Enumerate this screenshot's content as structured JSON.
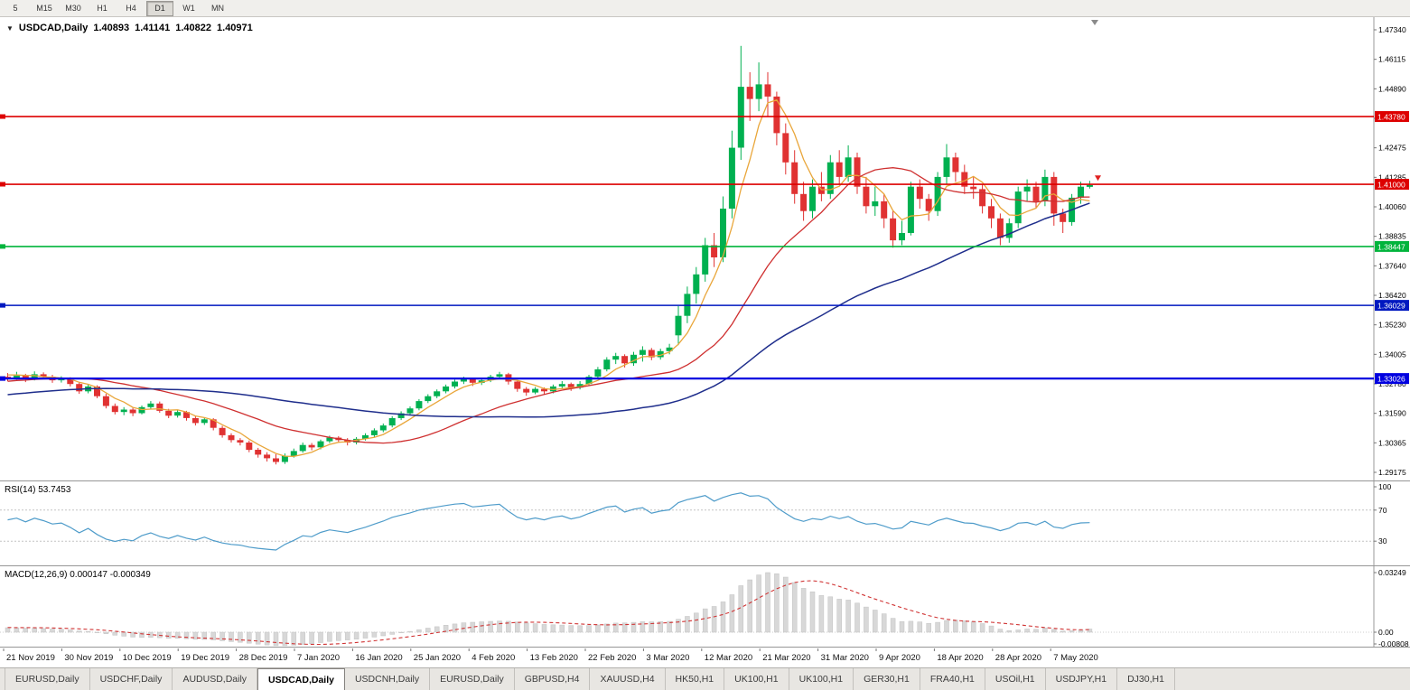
{
  "toolbar": {
    "timeframes": [
      "5",
      "M15",
      "M30",
      "H1",
      "H4",
      "D1",
      "W1",
      "MN"
    ],
    "active": "D1"
  },
  "icons": {
    "symbol_dropdown": "▼"
  },
  "header": {
    "symbol": "USDCAD,Daily",
    "open": "1.40893",
    "high": "1.41141",
    "low": "1.40822",
    "close": "1.40971"
  },
  "rsi_pane": {
    "label": "RSI(14) 53.7453",
    "axis_ticks": [
      "100",
      "70",
      "30"
    ]
  },
  "macd_pane": {
    "label": "MACD(12,26,9) 0.000147 -0.000349",
    "axis_ticks": [
      "0.03249",
      "0.00",
      "-0.00808"
    ]
  },
  "chart_data": {
    "type": "candlestick",
    "title": "USDCAD,Daily",
    "y_axis": {
      "top": 1.4734,
      "bottom": 1.29175,
      "tick_labels": [
        "1.47340",
        "1.46115",
        "1.44890",
        "1.43665",
        "1.42475",
        "1.41285",
        "1.40060",
        "1.38835",
        "1.37640",
        "1.36420",
        "1.35230",
        "1.34005",
        "1.32780",
        "1.31590",
        "1.30365",
        "1.29175"
      ]
    },
    "x_labels": [
      "21 Nov 2019",
      "30 Nov 2019",
      "10 Dec 2019",
      "19 Dec 2019",
      "28 Dec 2019",
      "7 Jan 2020",
      "16 Jan 2020",
      "25 Jan 2020",
      "4 Feb 2020",
      "13 Feb 2020",
      "22 Feb 2020",
      "3 Mar 2020",
      "12 Mar 2020",
      "21 Mar 2020",
      "31 Mar 2020",
      "9 Apr 2020",
      "18 Apr 2020",
      "28 Apr 2020",
      "7 May 2020"
    ],
    "candle_colors": {
      "up": "#00b050",
      "down": "#e03232"
    },
    "candles": [
      [
        1.331,
        1.3325,
        1.3292,
        1.3305
      ],
      [
        1.3305,
        1.333,
        1.3298,
        1.3315
      ],
      [
        1.3315,
        1.3322,
        1.3288,
        1.33
      ],
      [
        1.33,
        1.3332,
        1.3295,
        1.332
      ],
      [
        1.332,
        1.3328,
        1.33,
        1.331
      ],
      [
        1.331,
        1.3318,
        1.3285,
        1.3295
      ],
      [
        1.3295,
        1.3312,
        1.3286,
        1.33
      ],
      [
        1.33,
        1.3308,
        1.327,
        1.328
      ],
      [
        1.328,
        1.3288,
        1.324,
        1.325
      ],
      [
        1.325,
        1.3278,
        1.3242,
        1.327
      ],
      [
        1.327,
        1.3275,
        1.3222,
        1.323
      ],
      [
        1.323,
        1.324,
        1.318,
        1.319
      ],
      [
        1.319,
        1.32,
        1.3155,
        1.3165
      ],
      [
        1.3165,
        1.3185,
        1.3152,
        1.3175
      ],
      [
        1.3175,
        1.3182,
        1.3148,
        1.316
      ],
      [
        1.316,
        1.3192,
        1.3155,
        1.3185
      ],
      [
        1.3185,
        1.321,
        1.3178,
        1.32
      ],
      [
        1.32,
        1.3208,
        1.3162,
        1.317
      ],
      [
        1.317,
        1.3178,
        1.314,
        1.315
      ],
      [
        1.315,
        1.3172,
        1.3142,
        1.3165
      ],
      [
        1.3165,
        1.317,
        1.313,
        1.314
      ],
      [
        1.314,
        1.3148,
        1.311,
        1.312
      ],
      [
        1.312,
        1.3142,
        1.3112,
        1.3135
      ],
      [
        1.3135,
        1.314,
        1.309,
        1.31
      ],
      [
        1.31,
        1.3108,
        1.306,
        1.307
      ],
      [
        1.307,
        1.3078,
        1.304,
        1.305
      ],
      [
        1.305,
        1.3058,
        1.3028,
        1.304
      ],
      [
        1.304,
        1.3048,
        1.3,
        1.301
      ],
      [
        1.301,
        1.3018,
        1.2978,
        1.299
      ],
      [
        1.299,
        1.3,
        1.2962,
        1.2975
      ],
      [
        1.2975,
        1.2992,
        1.295,
        1.296
      ],
      [
        1.296,
        1.2995,
        1.2952,
        1.2985
      ],
      [
        1.2985,
        1.3015,
        1.2978,
        1.3005
      ],
      [
        1.3005,
        1.304,
        1.2998,
        1.303
      ],
      [
        1.303,
        1.3038,
        1.3008,
        1.302
      ],
      [
        1.302,
        1.3052,
        1.3012,
        1.3045
      ],
      [
        1.3045,
        1.3068,
        1.3038,
        1.306
      ],
      [
        1.306,
        1.3066,
        1.304,
        1.305
      ],
      [
        1.305,
        1.3058,
        1.3028,
        1.304
      ],
      [
        1.304,
        1.3062,
        1.3032,
        1.3055
      ],
      [
        1.3055,
        1.3078,
        1.3048,
        1.307
      ],
      [
        1.307,
        1.3098,
        1.3062,
        1.309
      ],
      [
        1.309,
        1.3118,
        1.3082,
        1.311
      ],
      [
        1.311,
        1.3148,
        1.3102,
        1.314
      ],
      [
        1.314,
        1.3168,
        1.3132,
        1.316
      ],
      [
        1.316,
        1.3188,
        1.3152,
        1.318
      ],
      [
        1.318,
        1.3218,
        1.3172,
        1.321
      ],
      [
        1.321,
        1.3238,
        1.3202,
        1.323
      ],
      [
        1.323,
        1.3258,
        1.3222,
        1.325
      ],
      [
        1.325,
        1.3278,
        1.3242,
        1.327
      ],
      [
        1.327,
        1.3298,
        1.3262,
        1.329
      ],
      [
        1.329,
        1.331,
        1.328,
        1.33
      ],
      [
        1.33,
        1.3306,
        1.3272,
        1.3285
      ],
      [
        1.3285,
        1.3304,
        1.3276,
        1.3295
      ],
      [
        1.3295,
        1.3318,
        1.3288,
        1.331
      ],
      [
        1.331,
        1.333,
        1.33,
        1.332
      ],
      [
        1.332,
        1.3326,
        1.3278,
        1.329
      ],
      [
        1.329,
        1.3296,
        1.3248,
        1.326
      ],
      [
        1.326,
        1.3268,
        1.3232,
        1.3245
      ],
      [
        1.3245,
        1.3268,
        1.3238,
        1.326
      ],
      [
        1.326,
        1.3266,
        1.3238,
        1.325
      ],
      [
        1.325,
        1.3278,
        1.3242,
        1.327
      ],
      [
        1.327,
        1.3292,
        1.3262,
        1.328
      ],
      [
        1.328,
        1.3286,
        1.3252,
        1.3265
      ],
      [
        1.3265,
        1.3292,
        1.3258,
        1.328
      ],
      [
        1.328,
        1.3318,
        1.3272,
        1.331
      ],
      [
        1.331,
        1.335,
        1.3302,
        1.334
      ],
      [
        1.334,
        1.339,
        1.3332,
        1.338
      ],
      [
        1.338,
        1.3408,
        1.3362,
        1.3395
      ],
      [
        1.3395,
        1.3402,
        1.3348,
        1.3365
      ],
      [
        1.3365,
        1.3412,
        1.3355,
        1.34
      ],
      [
        1.34,
        1.3435,
        1.3372,
        1.342
      ],
      [
        1.342,
        1.3428,
        1.3378,
        1.339
      ],
      [
        1.339,
        1.3425,
        1.338,
        1.3415
      ],
      [
        1.3415,
        1.3445,
        1.3402,
        1.343
      ],
      [
        1.348,
        1.36,
        1.344,
        1.356
      ],
      [
        1.356,
        1.368,
        1.353,
        1.365
      ],
      [
        1.365,
        1.376,
        1.361,
        1.373
      ],
      [
        1.373,
        1.388,
        1.37,
        1.385
      ],
      [
        1.385,
        1.39,
        1.376,
        1.38
      ],
      [
        1.38,
        1.405,
        1.378,
        1.4
      ],
      [
        1.4,
        1.432,
        1.396,
        1.425
      ],
      [
        1.425,
        1.4668,
        1.42,
        1.45
      ],
      [
        1.45,
        1.456,
        1.436,
        1.445
      ],
      [
        1.445,
        1.46,
        1.44,
        1.451
      ],
      [
        1.451,
        1.456,
        1.438,
        1.446
      ],
      [
        1.446,
        1.448,
        1.426,
        1.431
      ],
      [
        1.431,
        1.435,
        1.414,
        1.419
      ],
      [
        1.419,
        1.424,
        1.402,
        1.406
      ],
      [
        1.406,
        1.411,
        1.395,
        1.399
      ],
      [
        1.399,
        1.412,
        1.396,
        1.409
      ],
      [
        1.409,
        1.415,
        1.403,
        1.406
      ],
      [
        1.406,
        1.422,
        1.404,
        1.419
      ],
      [
        1.419,
        1.424,
        1.41,
        1.413
      ],
      [
        1.413,
        1.426,
        1.411,
        1.421
      ],
      [
        1.421,
        1.423,
        1.406,
        1.409
      ],
      [
        1.409,
        1.413,
        1.398,
        1.401
      ],
      [
        1.401,
        1.409,
        1.397,
        1.403
      ],
      [
        1.403,
        1.406,
        1.392,
        1.396
      ],
      [
        1.396,
        1.399,
        1.384,
        1.387
      ],
      [
        1.387,
        1.395,
        1.385,
        1.39
      ],
      [
        1.39,
        1.411,
        1.389,
        1.409
      ],
      [
        1.409,
        1.412,
        1.4,
        1.404
      ],
      [
        1.404,
        1.406,
        1.395,
        1.399
      ],
      [
        1.399,
        1.415,
        1.397,
        1.413
      ],
      [
        1.413,
        1.4265,
        1.41,
        1.421
      ],
      [
        1.421,
        1.423,
        1.411,
        1.415
      ],
      [
        1.415,
        1.418,
        1.406,
        1.409
      ],
      [
        1.409,
        1.413,
        1.404,
        1.408
      ],
      [
        1.408,
        1.41,
        1.398,
        1.401
      ],
      [
        1.401,
        1.404,
        1.392,
        1.396
      ],
      [
        1.396,
        1.398,
        1.385,
        1.388
      ],
      [
        1.388,
        1.396,
        1.386,
        1.394
      ],
      [
        1.394,
        1.409,
        1.392,
        1.407
      ],
      [
        1.407,
        1.412,
        1.403,
        1.409
      ],
      [
        1.409,
        1.411,
        1.4,
        1.403
      ],
      [
        1.403,
        1.416,
        1.401,
        1.413
      ],
      [
        1.413,
        1.415,
        1.393,
        1.398
      ],
      [
        1.398,
        1.4,
        1.39,
        1.3945
      ],
      [
        1.3945,
        1.406,
        1.393,
        1.4045
      ],
      [
        1.4045,
        1.411,
        1.402,
        1.409
      ],
      [
        1.40893,
        1.41141,
        1.40822,
        1.40971
      ]
    ],
    "indicator_warmup_closes": [
      1.315,
      1.3135,
      1.3158,
      1.3142,
      1.3165,
      1.315,
      1.3172,
      1.3158,
      1.318,
      1.3166,
      1.3188,
      1.3174,
      1.3195,
      1.3182,
      1.3202,
      1.319,
      1.321,
      1.3198,
      1.3218,
      1.3206,
      1.3225,
      1.3214,
      1.3232,
      1.3221,
      1.324,
      1.3229,
      1.3247,
      1.3236,
      1.3254,
      1.3244,
      1.3261,
      1.3251,
      1.3268,
      1.3258,
      1.3275,
      1.3266,
      1.3282,
      1.3273,
      1.3289,
      1.328,
      1.3296,
      1.3288,
      1.3303,
      1.3295,
      1.331,
      1.3302,
      1.3317,
      1.331,
      1.3324,
      1.3332
    ],
    "overlays": [
      {
        "name": "MA(5)",
        "period": 5,
        "color": "#e9a63a"
      },
      {
        "name": "MA(20)",
        "period": 20,
        "color": "#cf3030"
      },
      {
        "name": "MA(50)",
        "period": 50,
        "color": "#1f2e8c"
      }
    ],
    "horizontal_lines": [
      {
        "price": 1.4378,
        "label": "1.43780",
        "color": "#dd0000",
        "weight": 1.6
      },
      {
        "price": 1.41,
        "label": "1.41000",
        "color": "#dd0000",
        "weight": 1.6
      },
      {
        "price": 1.38447,
        "label": "1.38447",
        "color": "#00b43c",
        "weight": 1.6
      },
      {
        "price": 1.36029,
        "label": "1.36029",
        "color": "#0018c0",
        "weight": 1.4
      },
      {
        "price": 1.33026,
        "label": "1.33026",
        "color": "#0000e0",
        "weight": 2.2
      }
    ],
    "rsi": {
      "period": 14,
      "levels": [
        70,
        30
      ],
      "color": "#4f9cca",
      "current": "53.7453"
    },
    "macd": {
      "fast": 12,
      "slow": 26,
      "signal": 9,
      "hist_color": "#d8d8d8",
      "signal_color": "#d03434",
      "current_main": "0.000147",
      "current_signal": "-0.000349"
    },
    "sell_marker": {
      "price": 1.4118,
      "color": "#e02020"
    }
  },
  "tabs": {
    "items": [
      "EURUSD,Daily",
      "USDCHF,Daily",
      "AUDUSD,Daily",
      "USDCAD,Daily",
      "USDCNH,Daily",
      "EURUSD,Daily",
      "GBPUSD,H4",
      "XAUUSD,H4",
      "HK50,H1",
      "UK100,H1",
      "UK100,H1",
      "GER30,H1",
      "FRA40,H1",
      "USOil,H1",
      "USDJPY,H1",
      "DJ30,H1"
    ],
    "active_index": 3
  }
}
